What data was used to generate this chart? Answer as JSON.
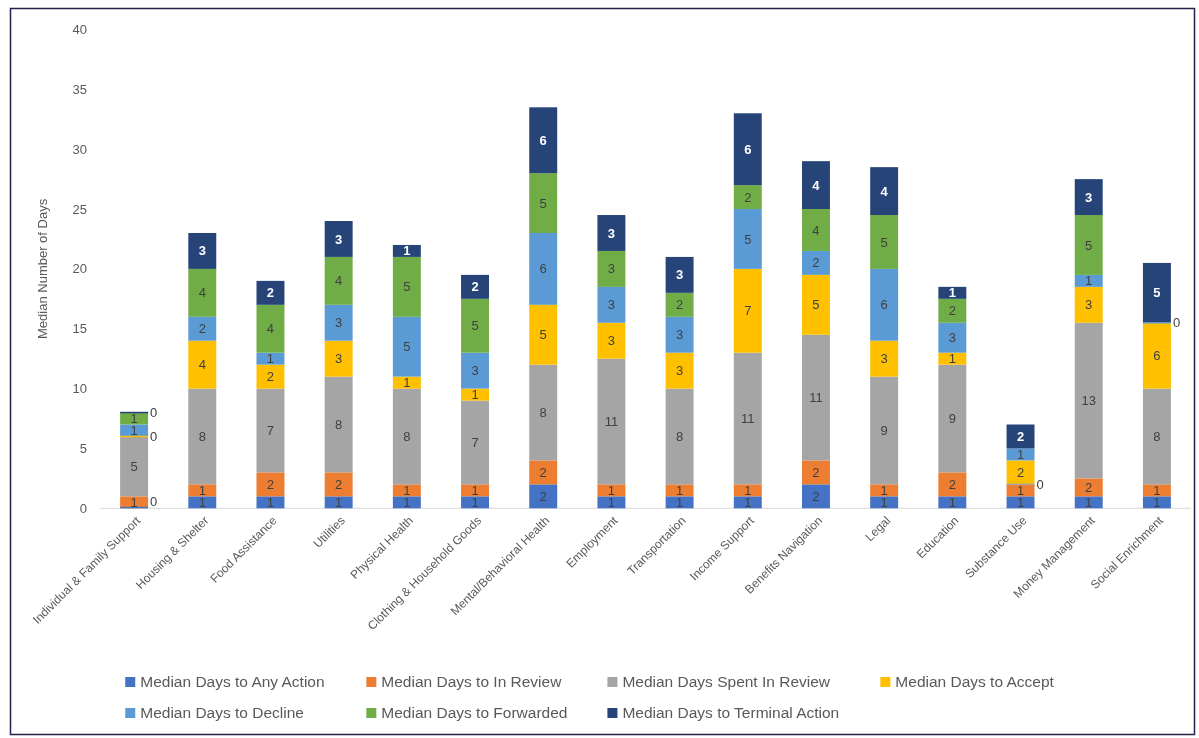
{
  "chart_data": {
    "type": "bar",
    "stacked": true,
    "ylabel": "Median Number of Days",
    "legend": "bottom",
    "categories": [
      "Individual & Family Support",
      "Housing & Shelter",
      "Food Assistance",
      "Utilities",
      "Physical Health",
      "Clothing & Household Goods",
      "Mental/Behavioral Health",
      "Employment",
      "Transportation",
      "Income Support",
      "Benefits Navigation",
      "Legal",
      "Education",
      "Substance Use",
      "Money Management",
      "Social Enrichment"
    ],
    "ylim": [
      0,
      40
    ],
    "yticks": [
      0,
      5,
      10,
      15,
      20,
      25,
      30,
      35,
      40
    ],
    "series": [
      {
        "name": "Median Days to Any Action",
        "color": "#4472c4",
        "values": [
          0,
          1,
          1,
          1,
          1,
          1,
          2,
          1,
          1,
          1,
          2,
          1,
          1,
          1,
          1,
          1
        ],
        "value_labels": [
          "0",
          "1",
          "1",
          "1",
          "1",
          "1",
          "2",
          "1",
          "1",
          "1",
          "2",
          "1",
          "1",
          "1",
          "1",
          "1"
        ]
      },
      {
        "name": "Median Days to In Review",
        "color": "#ed7d31",
        "values": [
          1,
          1,
          2,
          2,
          1,
          1,
          2,
          1,
          1,
          1,
          2,
          1,
          2,
          1,
          1.5,
          1
        ],
        "value_labels": [
          "1",
          "1",
          "2",
          "2",
          "1",
          "1",
          "2",
          "1",
          "1",
          "1",
          "2",
          "1",
          "2",
          "1",
          "2",
          "1"
        ]
      },
      {
        "name": "Median Days Spent In Review",
        "color": "#a5a5a5",
        "values": [
          5,
          8,
          7,
          8,
          8,
          7,
          8,
          10.5,
          8,
          11,
          10.5,
          9,
          9,
          0,
          13,
          8
        ],
        "value_labels": [
          "5",
          "8",
          "7",
          "8",
          "8",
          "7",
          "8",
          "11",
          "8",
          "11",
          "11",
          "9",
          "9",
          "0",
          "13",
          "8"
        ]
      },
      {
        "name": "Median Days to Accept",
        "color": "#ffc000",
        "values": [
          0,
          4,
          2,
          3,
          1,
          1,
          5,
          3,
          3,
          7,
          5,
          3,
          1,
          2,
          3,
          5.5
        ],
        "value_labels": [
          "0",
          "4",
          "2",
          "3",
          "1",
          "1",
          "5",
          "3",
          "3",
          "7",
          "5",
          "3",
          "1",
          "2",
          "3",
          "6"
        ]
      },
      {
        "name": "Median Days to Decline",
        "color": "#5b9bd5",
        "values": [
          1,
          2,
          1,
          3,
          5,
          3,
          6,
          3,
          3,
          5,
          2,
          6,
          2.5,
          1,
          1,
          0
        ],
        "value_labels": [
          "1",
          "2",
          "1",
          "3",
          "5",
          "3",
          "6",
          "3",
          "3",
          "5",
          "2",
          "6",
          "3",
          "1",
          "1",
          "0"
        ]
      },
      {
        "name": "Median Days to Forwarded",
        "color": "#70ad47",
        "values": [
          1,
          4,
          4,
          4,
          5,
          4.5,
          5,
          3,
          2,
          2,
          3.5,
          4.5,
          2,
          null,
          5,
          null
        ],
        "value_labels": [
          "1",
          "4",
          "4",
          "4",
          "5",
          "5",
          "5",
          "3",
          "2",
          "2",
          "4",
          "5",
          "2",
          null,
          "5",
          null
        ]
      },
      {
        "name": "Median Days to Terminal Action",
        "color": "#264478",
        "values": [
          0,
          3,
          2,
          3,
          1,
          2,
          5.5,
          3,
          3,
          6,
          4,
          4,
          1,
          2,
          3,
          5
        ],
        "value_labels": [
          "0",
          "3",
          "2",
          "3",
          "1",
          "2",
          "6",
          "3",
          "3",
          "6",
          "4",
          "4",
          "1",
          "2",
          "3",
          "5"
        ]
      }
    ]
  }
}
